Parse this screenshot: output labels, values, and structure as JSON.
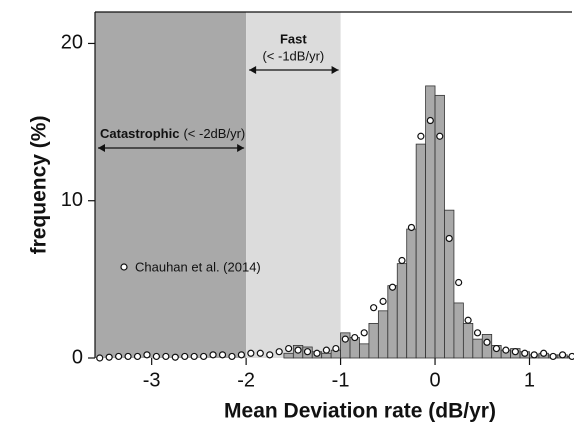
{
  "chart_data": {
    "type": "histogram",
    "xlabel": "Mean Deviation rate (dB/yr)",
    "ylabel": "frequency (%)",
    "xlim": [
      -3.6,
      1.45
    ],
    "ylim": [
      0,
      22
    ],
    "xticks": [
      -3,
      -2,
      -1,
      0,
      1
    ],
    "yticks": [
      0,
      10,
      20
    ],
    "color": "#a9a9a9",
    "bins": [
      -1.6,
      -1.5,
      -1.4,
      -1.3,
      -1.2,
      -1.1,
      -1.0,
      -0.9,
      -0.8,
      -0.7,
      -0.6,
      -0.5,
      -0.4,
      -0.3,
      -0.2,
      -0.1,
      0,
      0.1,
      0.2,
      0.3,
      0.4,
      0.5,
      0.6,
      0.7,
      0.8,
      0.9,
      1.0,
      1.1,
      1.2,
      1.3,
      1.4,
      1.5
    ],
    "values": [
      0.3,
      0.8,
      0.7,
      0.4,
      0.3,
      0.5,
      1.6,
      1.3,
      0.9,
      2.2,
      3.0,
      4.6,
      6.0,
      8.2,
      13.6,
      17.3,
      16.7,
      9.4,
      3.5,
      2.2,
      1.2,
      1.5,
      0.8,
      0.5,
      0.6,
      0.4,
      0.2,
      0.3,
      0.2,
      0.2,
      0.1
    ],
    "series": [
      {
        "name": "Chauhan et al. (2014)",
        "type": "scatter",
        "color": "#ffffff",
        "x": [
          -3.55,
          -3.45,
          -3.35,
          -3.25,
          -3.15,
          -3.05,
          -2.95,
          -2.85,
          -2.75,
          -2.65,
          -2.55,
          -2.45,
          -2.35,
          -2.25,
          -2.15,
          -2.05,
          -1.95,
          -1.85,
          -1.75,
          -1.65,
          -1.55,
          -1.45,
          -1.35,
          -1.25,
          -1.15,
          -1.05,
          -0.95,
          -0.85,
          -0.75,
          -0.65,
          -0.55,
          -0.45,
          -0.35,
          -0.25,
          -0.15,
          -0.05,
          0.05,
          0.15,
          0.25,
          0.35,
          0.45,
          0.55,
          0.65,
          0.75,
          0.85,
          0.95,
          1.05,
          1.15,
          1.25,
          1.35,
          1.45
        ],
        "values": [
          0.0,
          0.05,
          0.1,
          0.1,
          0.1,
          0.2,
          0.1,
          0.1,
          0.05,
          0.1,
          0.1,
          0.1,
          0.2,
          0.2,
          0.1,
          0.2,
          0.3,
          0.3,
          0.2,
          0.4,
          0.6,
          0.5,
          0.4,
          0.3,
          0.5,
          0.6,
          1.2,
          1.3,
          1.6,
          3.2,
          3.6,
          4.5,
          6.2,
          8.3,
          14.1,
          15.1,
          14.1,
          7.6,
          4.8,
          2.4,
          1.6,
          1.0,
          0.6,
          0.5,
          0.4,
          0.3,
          0.2,
          0.3,
          0.1,
          0.2,
          0.1
        ]
      }
    ],
    "regions": [
      {
        "label": "Catastrophic",
        "note": "(< -2dB/yr)",
        "to": -2,
        "color": "#a9a9a9"
      },
      {
        "label": "Fast",
        "note": "(< -1dB/yr)",
        "from": -2,
        "to": -1,
        "color": "#dcdcdc"
      }
    ]
  }
}
